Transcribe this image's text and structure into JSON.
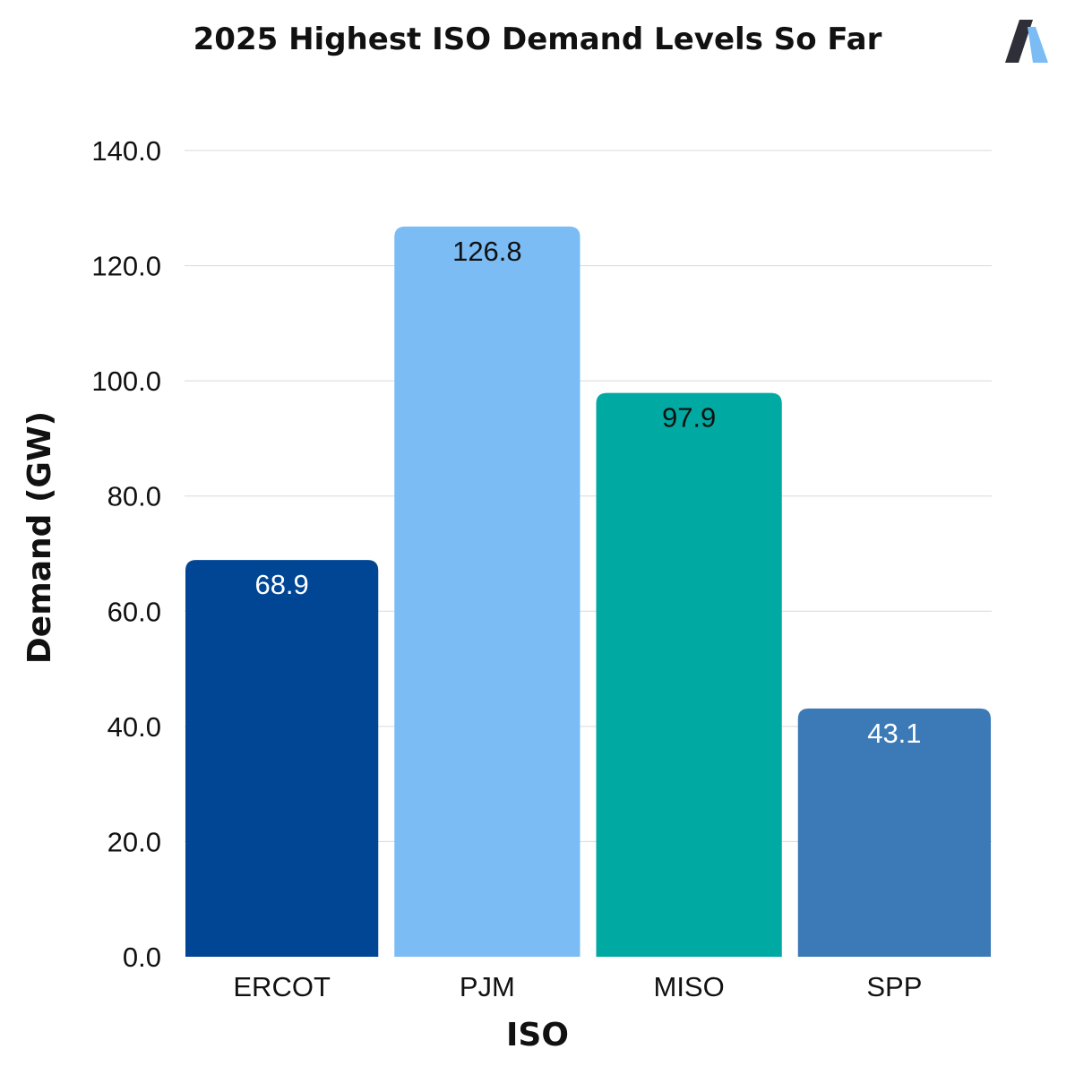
{
  "brand_logo": {
    "icon": "stylized-a-logo-icon",
    "colors": [
      "#2f2f3a",
      "#7bbcf5"
    ]
  },
  "chart_data": {
    "type": "bar",
    "title": "2025 Highest ISO Demand Levels So Far",
    "xlabel": "ISO",
    "ylabel": "Demand (GW)",
    "categories": [
      "ERCOT",
      "PJM",
      "MISO",
      "SPP"
    ],
    "values": [
      68.9,
      126.8,
      97.9,
      43.1
    ],
    "value_labels": [
      "68.9",
      "126.8",
      "97.9",
      "43.1"
    ],
    "bar_colors": [
      "#004695",
      "#7bbcf5",
      "#00a9a1",
      "#3c79b7"
    ],
    "label_colors": [
      "#ffffff",
      "#111111",
      "#111111",
      "#ffffff"
    ],
    "ylim": [
      0,
      140
    ],
    "yticks": [
      0,
      20,
      40,
      60,
      80,
      100,
      120,
      140
    ],
    "ytick_labels": [
      "0.0",
      "20.0",
      "40.0",
      "60.0",
      "80.0",
      "100.0",
      "120.0",
      "140.0"
    ],
    "grid": true,
    "legend": "none"
  }
}
